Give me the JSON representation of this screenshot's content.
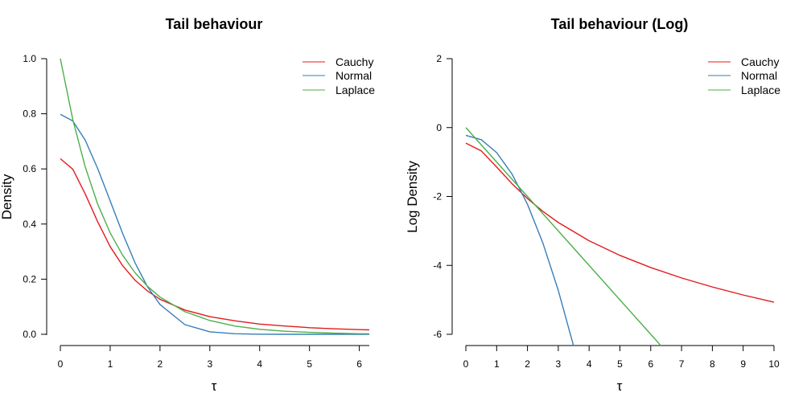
{
  "chart_data": [
    {
      "type": "line",
      "title": "Tail behaviour",
      "xlabel": "τ",
      "ylabel": "Density",
      "xlim": [
        0,
        6.2
      ],
      "ylim": [
        0,
        1.0
      ],
      "x_ticks": [
        "0",
        "1",
        "2",
        "3",
        "4",
        "5",
        "6"
      ],
      "y_ticks": [
        "0.0",
        "0.2",
        "0.4",
        "0.6",
        "0.8",
        "1.0"
      ],
      "grid": false,
      "legend_position": "top-right",
      "series": [
        {
          "name": "Cauchy",
          "color": "#E41A1C",
          "x": [
            0,
            0.25,
            0.5,
            0.75,
            1.0,
            1.25,
            1.5,
            1.75,
            2.0,
            2.5,
            3.0,
            3.5,
            4.0,
            4.5,
            5.0,
            5.5,
            6.0,
            6.2
          ],
          "y": [
            0.637,
            0.599,
            0.509,
            0.408,
            0.318,
            0.249,
            0.196,
            0.157,
            0.127,
            0.088,
            0.064,
            0.049,
            0.037,
            0.03,
            0.024,
            0.02,
            0.017,
            0.016
          ]
        },
        {
          "name": "Normal",
          "color": "#377EB8",
          "x": [
            0,
            0.25,
            0.5,
            0.75,
            1.0,
            1.25,
            1.5,
            1.75,
            2.0,
            2.5,
            3.0,
            3.5,
            4.0,
            4.5,
            5.0,
            5.5,
            6.0,
            6.2
          ],
          "y": [
            0.798,
            0.774,
            0.704,
            0.601,
            0.484,
            0.366,
            0.259,
            0.172,
            0.108,
            0.035,
            0.009,
            0.002,
            0.0003,
            0.0,
            0.0,
            0.0,
            0.0,
            0.0
          ]
        },
        {
          "name": "Laplace",
          "color": "#4DAF4A",
          "x": [
            0,
            0.25,
            0.5,
            0.75,
            1.0,
            1.25,
            1.5,
            1.75,
            2.0,
            2.5,
            3.0,
            3.5,
            4.0,
            4.5,
            5.0,
            5.5,
            6.0,
            6.2
          ],
          "y": [
            1.0,
            0.779,
            0.607,
            0.472,
            0.368,
            0.287,
            0.223,
            0.174,
            0.135,
            0.082,
            0.05,
            0.03,
            0.018,
            0.011,
            0.007,
            0.004,
            0.002,
            0.002
          ]
        }
      ]
    },
    {
      "type": "line",
      "title": "Tail behaviour (Log)",
      "xlabel": "τ",
      "ylabel": "Log Density",
      "xlim": [
        0,
        10
      ],
      "ylim": [
        -6,
        2
      ],
      "x_ticks": [
        "0",
        "1",
        "2",
        "3",
        "4",
        "5",
        "6",
        "7",
        "8",
        "9",
        "10"
      ],
      "y_ticks": [
        "-6",
        "-4",
        "-2",
        "0",
        "2"
      ],
      "grid": false,
      "legend_position": "top-right",
      "series": [
        {
          "name": "Cauchy",
          "color": "#E41A1C",
          "x": [
            0,
            0.5,
            1,
            1.5,
            2,
            2.5,
            3,
            4,
            5,
            6,
            7,
            8,
            9,
            10
          ],
          "y": [
            -0.452,
            -0.675,
            -1.145,
            -1.631,
            -2.061,
            -2.433,
            -2.755,
            -3.285,
            -3.71,
            -4.063,
            -4.364,
            -4.627,
            -4.86,
            -5.068
          ]
        },
        {
          "name": "Normal",
          "color": "#377EB8",
          "x": [
            0,
            0.5,
            1,
            1.5,
            2,
            2.5,
            3,
            3.5
          ],
          "y": [
            -0.226,
            -0.351,
            -0.726,
            -1.351,
            -2.226,
            -3.351,
            -4.726,
            -6.351
          ]
        },
        {
          "name": "Laplace",
          "color": "#4DAF4A",
          "x": [
            0,
            1,
            2,
            3,
            4,
            5,
            6,
            6.4
          ],
          "y": [
            0,
            -1,
            -2,
            -3,
            -4,
            -5,
            -6,
            -6.4
          ]
        }
      ]
    }
  ]
}
